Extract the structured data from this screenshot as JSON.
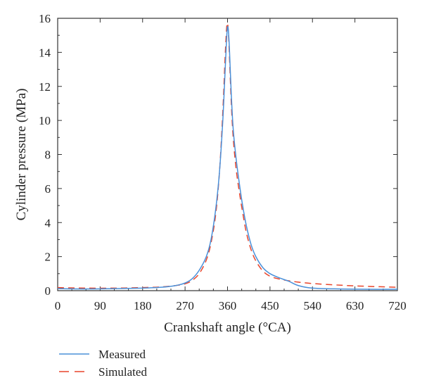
{
  "chart_data": {
    "type": "line",
    "title": "",
    "xlabel": "Crankshaft angle (°CA)",
    "ylabel": "Cylinder pressure (MPa)",
    "xlim": [
      0,
      720
    ],
    "ylim": [
      0,
      16
    ],
    "xticks": [
      0,
      90,
      180,
      270,
      360,
      450,
      540,
      630,
      720
    ],
    "yticks": [
      0,
      2,
      4,
      6,
      8,
      10,
      12,
      14,
      16
    ],
    "grid": false,
    "legend_position": "bottom-left",
    "series": [
      {
        "name": "Measured",
        "color": "#4a90d9",
        "style": "solid",
        "x": [
          0,
          60,
          120,
          180,
          220,
          250,
          270,
          285,
          300,
          315,
          325,
          335,
          343,
          350,
          355,
          358,
          360,
          362,
          364,
          368,
          372,
          378,
          385,
          392,
          400,
          410,
          420,
          435,
          450,
          470,
          490,
          510,
          540,
          600,
          660,
          720
        ],
        "y": [
          0.12,
          0.1,
          0.12,
          0.15,
          0.2,
          0.3,
          0.45,
          0.7,
          1.2,
          2.0,
          3.0,
          4.8,
          7.0,
          10.0,
          13.0,
          14.8,
          15.5,
          15.2,
          14.2,
          11.5,
          9.5,
          7.8,
          6.3,
          5.0,
          3.8,
          2.7,
          2.0,
          1.35,
          1.0,
          0.75,
          0.55,
          0.3,
          0.15,
          0.1,
          0.08,
          0.08
        ]
      },
      {
        "name": "Simulated",
        "color": "#e8452c",
        "style": "dashed",
        "x": [
          0,
          60,
          120,
          180,
          220,
          250,
          270,
          285,
          300,
          315,
          325,
          335,
          343,
          350,
          355,
          358,
          360,
          362,
          364,
          368,
          372,
          378,
          385,
          392,
          400,
          410,
          420,
          435,
          450,
          470,
          490,
          510,
          540,
          600,
          660,
          720
        ],
        "y": [
          0.18,
          0.15,
          0.15,
          0.18,
          0.22,
          0.3,
          0.4,
          0.6,
          1.0,
          1.8,
          2.8,
          4.5,
          7.0,
          10.5,
          13.8,
          15.4,
          15.7,
          15.1,
          13.8,
          11.0,
          9.0,
          7.2,
          5.8,
          4.6,
          3.4,
          2.4,
          1.75,
          1.15,
          0.85,
          0.68,
          0.58,
          0.5,
          0.42,
          0.32,
          0.25,
          0.2
        ]
      }
    ]
  }
}
